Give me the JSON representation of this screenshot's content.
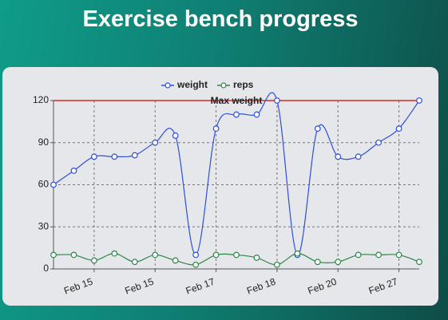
{
  "chart_data": {
    "type": "line",
    "title": "Exercise bench progress",
    "categories": [
      null,
      null,
      "Feb 15",
      null,
      null,
      "Feb 15",
      null,
      null,
      "Feb 17",
      null,
      null,
      "Feb 18",
      null,
      null,
      "Feb 20",
      null,
      null,
      "Feb 27",
      null
    ],
    "series": [
      {
        "name": "weight",
        "color": "#2d4fd8",
        "values": [
          60,
          70,
          80,
          80,
          81,
          90,
          95,
          10,
          100,
          110,
          110,
          120,
          10,
          100,
          80,
          80,
          90,
          100,
          120
        ]
      },
      {
        "name": "reps",
        "color": "#2e8548",
        "values": [
          10,
          10,
          6,
          11,
          5,
          10,
          6,
          3,
          10,
          10,
          8,
          3,
          11,
          5,
          5,
          10,
          10,
          10,
          5
        ]
      }
    ],
    "ylim": [
      0,
      120
    ],
    "yticks": [
      0,
      30,
      60,
      90,
      120
    ],
    "grid": true,
    "legend": "top",
    "annotations": [
      {
        "label": "Max weight",
        "value": 120,
        "color": "#d62b2b"
      }
    ]
  }
}
